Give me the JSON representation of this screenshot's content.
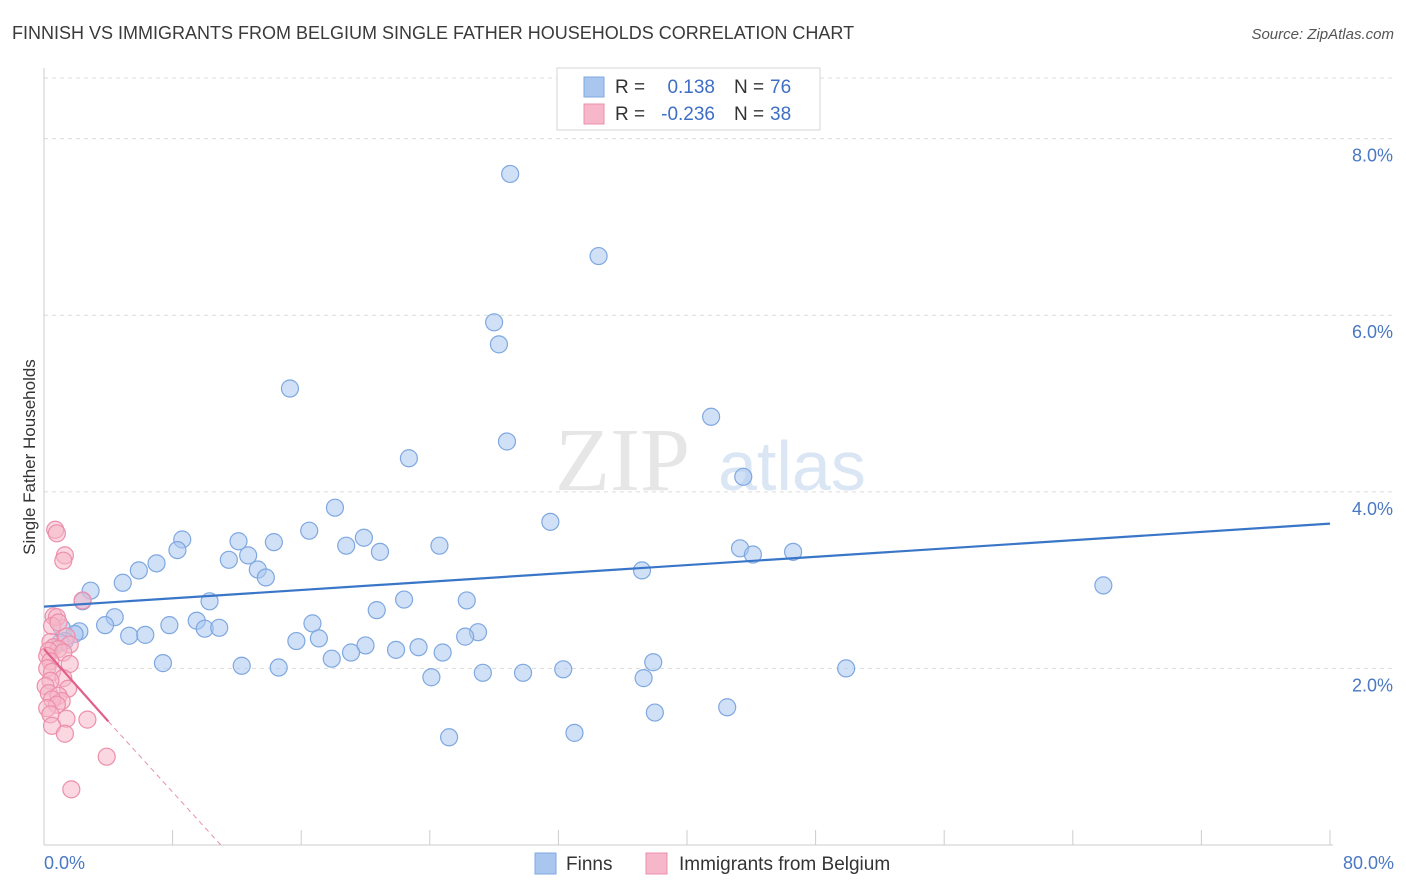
{
  "chart_data": {
    "type": "scatter",
    "title": "FINNISH VS IMMIGRANTS FROM BELGIUM SINGLE FATHER HOUSEHOLDS CORRELATION CHART",
    "source": "Source: ZipAtlas.com",
    "ylabel": "Single Father Households",
    "xlim": [
      0,
      80
    ],
    "ylim": [
      0,
      8.8
    ],
    "y_ticks": [
      {
        "value": 2,
        "label": "2.0%"
      },
      {
        "value": 4,
        "label": "4.0%"
      },
      {
        "value": 6,
        "label": "6.0%"
      },
      {
        "value": 8,
        "label": "8.0%"
      }
    ],
    "x_tick_labels": {
      "min": "0.0%",
      "max": "80.0%"
    },
    "x_minor_ticks": [
      0,
      8,
      16,
      24,
      32,
      40,
      48,
      56,
      64,
      72,
      80
    ],
    "watermark": {
      "zip": "ZIP",
      "atlas": "atlas"
    },
    "legend": {
      "r_label": "R =",
      "n_label": "N =",
      "entries": [
        {
          "r": "0.138",
          "n": "76"
        },
        {
          "r": "-0.236",
          "n": "38"
        }
      ]
    },
    "colors": {
      "finns_fill": "#a9c6ee",
      "finns_stroke": "#7fa8e0",
      "finns_line": "#3a76c8",
      "belgium_fill": "#f5b7c9",
      "belgium_stroke": "#ec8fab",
      "belgium_line": "#e0608a"
    },
    "series": [
      {
        "name": "Finns",
        "trend": {
          "x0": 0,
          "y0": 2.7,
          "x1": 80,
          "y1": 3.64
        },
        "points": [
          [
            29.0,
            7.6
          ],
          [
            34.5,
            6.67
          ],
          [
            28.0,
            5.92
          ],
          [
            28.3,
            5.67
          ],
          [
            15.3,
            5.17
          ],
          [
            41.5,
            4.85
          ],
          [
            28.8,
            4.57
          ],
          [
            22.7,
            4.38
          ],
          [
            43.5,
            4.17
          ],
          [
            18.1,
            3.82
          ],
          [
            31.5,
            3.66
          ],
          [
            16.5,
            3.56
          ],
          [
            8.6,
            3.46
          ],
          [
            12.1,
            3.44
          ],
          [
            14.3,
            3.43
          ],
          [
            18.8,
            3.39
          ],
          [
            19.9,
            3.48
          ],
          [
            24.6,
            3.39
          ],
          [
            43.3,
            3.36
          ],
          [
            46.6,
            3.32
          ],
          [
            8.3,
            3.34
          ],
          [
            20.9,
            3.32
          ],
          [
            44.1,
            3.29
          ],
          [
            7.0,
            3.19
          ],
          [
            11.5,
            3.23
          ],
          [
            12.7,
            3.28
          ],
          [
            13.3,
            3.12
          ],
          [
            5.9,
            3.11
          ],
          [
            37.2,
            3.11
          ],
          [
            13.8,
            3.03
          ],
          [
            4.9,
            2.97
          ],
          [
            65.9,
            2.94
          ],
          [
            2.9,
            2.88
          ],
          [
            2.4,
            2.76
          ],
          [
            10.3,
            2.76
          ],
          [
            22.4,
            2.78
          ],
          [
            26.3,
            2.77
          ],
          [
            20.7,
            2.66
          ],
          [
            4.4,
            2.58
          ],
          [
            9.5,
            2.54
          ],
          [
            3.8,
            2.49
          ],
          [
            7.8,
            2.49
          ],
          [
            10.0,
            2.45
          ],
          [
            10.9,
            2.46
          ],
          [
            16.7,
            2.51
          ],
          [
            1.1,
            2.46
          ],
          [
            2.2,
            2.42
          ],
          [
            1.9,
            2.39
          ],
          [
            5.3,
            2.37
          ],
          [
            6.3,
            2.38
          ],
          [
            27.0,
            2.41
          ],
          [
            17.1,
            2.34
          ],
          [
            1.3,
            2.31
          ],
          [
            26.2,
            2.36
          ],
          [
            15.7,
            2.31
          ],
          [
            20.0,
            2.26
          ],
          [
            23.3,
            2.24
          ],
          [
            19.1,
            2.18
          ],
          [
            24.8,
            2.18
          ],
          [
            21.9,
            2.21
          ],
          [
            17.9,
            2.11
          ],
          [
            7.4,
            2.06
          ],
          [
            12.3,
            2.03
          ],
          [
            14.6,
            2.01
          ],
          [
            37.9,
            2.07
          ],
          [
            49.9,
            2.0
          ],
          [
            32.3,
            1.99
          ],
          [
            27.3,
            1.95
          ],
          [
            29.8,
            1.95
          ],
          [
            24.1,
            1.9
          ],
          [
            37.3,
            1.89
          ],
          [
            42.5,
            1.56
          ],
          [
            38.0,
            1.5
          ],
          [
            25.2,
            1.22
          ],
          [
            33.0,
            1.27
          ],
          [
            1.0,
            2.29
          ]
        ]
      },
      {
        "name": "Immigrants from Belgium",
        "trend": {
          "x0": 0,
          "y0": 2.22,
          "x1": 4,
          "y1": 1.4
        },
        "trend_dashed": {
          "x0": 4,
          "y0": 1.4,
          "x1": 11,
          "y1": 0.0
        },
        "points": [
          [
            0.7,
            3.57
          ],
          [
            0.8,
            3.53
          ],
          [
            1.3,
            3.28
          ],
          [
            1.2,
            3.22
          ],
          [
            2.4,
            2.77
          ],
          [
            0.6,
            2.59
          ],
          [
            0.8,
            2.58
          ],
          [
            0.5,
            2.48
          ],
          [
            0.9,
            2.52
          ],
          [
            1.4,
            2.36
          ],
          [
            0.4,
            2.3
          ],
          [
            1.6,
            2.27
          ],
          [
            0.6,
            2.24
          ],
          [
            0.9,
            2.22
          ],
          [
            0.3,
            2.2
          ],
          [
            1.2,
            2.18
          ],
          [
            0.2,
            2.14
          ],
          [
            0.4,
            2.08
          ],
          [
            1.6,
            2.05
          ],
          [
            0.2,
            2.0
          ],
          [
            0.5,
            1.96
          ],
          [
            1.2,
            1.89
          ],
          [
            0.4,
            1.86
          ],
          [
            0.1,
            1.8
          ],
          [
            1.5,
            1.77
          ],
          [
            0.3,
            1.72
          ],
          [
            0.9,
            1.69
          ],
          [
            1.1,
            1.63
          ],
          [
            0.5,
            1.65
          ],
          [
            0.8,
            1.59
          ],
          [
            0.2,
            1.55
          ],
          [
            0.4,
            1.48
          ],
          [
            1.4,
            1.43
          ],
          [
            2.7,
            1.42
          ],
          [
            0.5,
            1.35
          ],
          [
            1.3,
            1.26
          ],
          [
            3.9,
            1.0
          ],
          [
            1.7,
            0.63
          ]
        ]
      }
    ],
    "bottom_legend": [
      "Finns",
      "Immigrants from Belgium"
    ]
  }
}
